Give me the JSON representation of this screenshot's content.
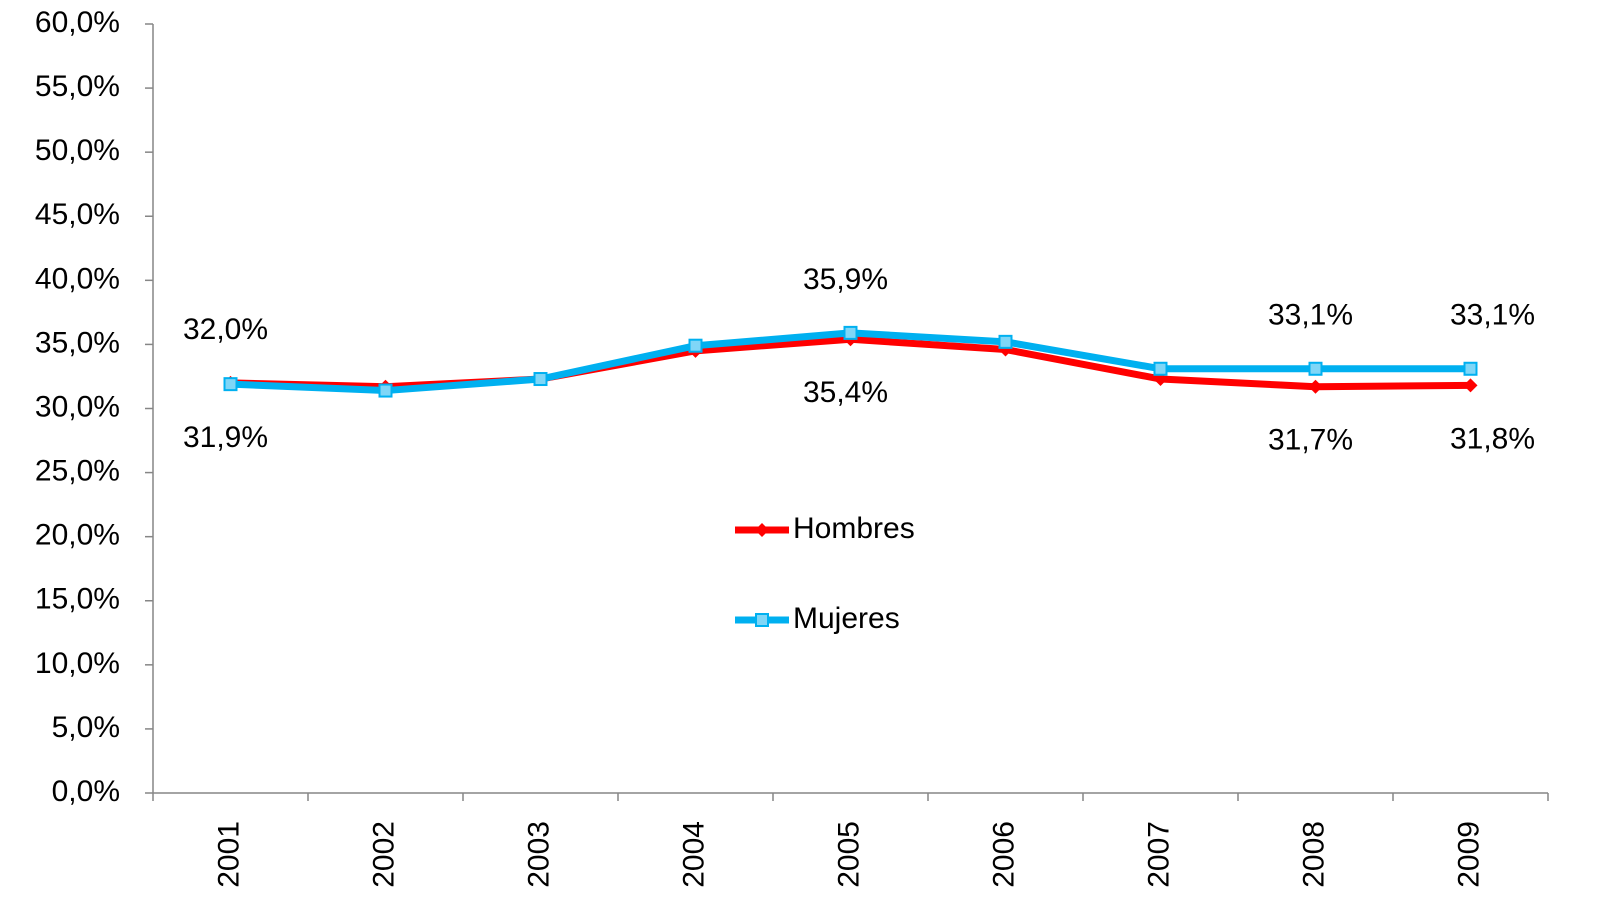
{
  "chart_data": {
    "type": "line",
    "categories": [
      "2001",
      "2002",
      "2003",
      "2004",
      "2005",
      "2006",
      "2007",
      "2008",
      "2009"
    ],
    "series": [
      {
        "name": "Hombres",
        "color": "#ff0000",
        "marker": "diamond",
        "values": [
          32.0,
          31.7,
          32.3,
          34.5,
          35.4,
          34.6,
          32.3,
          31.7,
          31.8
        ],
        "value_labels": [
          "32,0%",
          null,
          null,
          null,
          "35,4%",
          null,
          null,
          "31,7%",
          "31,8%"
        ]
      },
      {
        "name": "Mujeres",
        "color": "#00b0f0",
        "marker": "square",
        "values": [
          31.9,
          31.4,
          32.3,
          34.9,
          35.9,
          35.2,
          33.1,
          33.1,
          33.1
        ],
        "value_labels": [
          "31,9%",
          null,
          null,
          null,
          "35,9%",
          null,
          null,
          "33,1%",
          "33,1%"
        ]
      }
    ],
    "ylim": [
      0,
      60
    ],
    "yticks": [
      {
        "value": 0,
        "label": "0,0%"
      },
      {
        "value": 5,
        "label": "5,0%"
      },
      {
        "value": 10,
        "label": "10,0%"
      },
      {
        "value": 15,
        "label": "15,0%"
      },
      {
        "value": 20,
        "label": "20,0%"
      },
      {
        "value": 25,
        "label": "25,0%"
      },
      {
        "value": 30,
        "label": "30,0%"
      },
      {
        "value": 35,
        "label": "35,0%"
      },
      {
        "value": 40,
        "label": "40,0%"
      },
      {
        "value": 45,
        "label": "45,0%"
      },
      {
        "value": 50,
        "label": "50,0%"
      },
      {
        "value": 55,
        "label": "55,0%"
      },
      {
        "value": 60,
        "label": "60,0%"
      }
    ],
    "grid": false,
    "legend": "center"
  }
}
